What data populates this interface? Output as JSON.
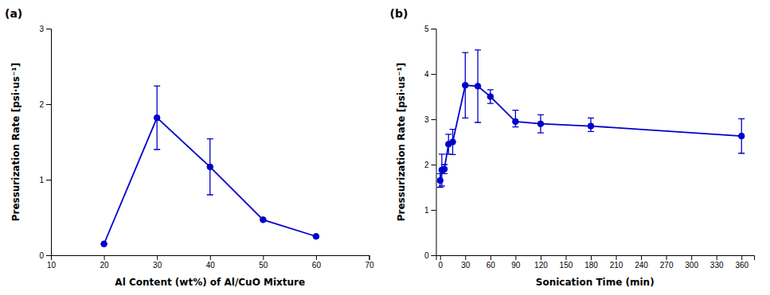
{
  "chart_data": [
    {
      "type": "line",
      "title": "(a)",
      "x": [
        20,
        30,
        40,
        50,
        60
      ],
      "values": [
        0.15,
        1.82,
        1.17,
        0.47,
        0.25
      ],
      "yerr": [
        0.0,
        0.42,
        0.37,
        0.0,
        0.0
      ],
      "xlim": [
        10,
        70
      ],
      "xticks": [
        10,
        20,
        30,
        40,
        50,
        60,
        70
      ],
      "ylim": [
        0,
        3
      ],
      "yticks": [
        0,
        1,
        2,
        3
      ],
      "xlabel": "Al Content (wt%) of Al/CuO Mixture",
      "ylabel": "Pressurization Rate [psi·us⁻¹]",
      "color": "#0000CC",
      "marker": "circle"
    },
    {
      "type": "line",
      "title": "(b)",
      "x": [
        0,
        2,
        5,
        10,
        15,
        30,
        45,
        60,
        90,
        120,
        180,
        360
      ],
      "values": [
        1.65,
        1.88,
        1.9,
        2.45,
        2.5,
        3.75,
        3.73,
        3.5,
        2.95,
        2.9,
        2.85,
        2.63
      ],
      "yerr_low": [
        0.15,
        0.35,
        0.1,
        0.22,
        0.28,
        0.72,
        0.8,
        0.15,
        0.12,
        0.2,
        0.12,
        0.38
      ],
      "yerr_high": [
        0.15,
        0.35,
        0.1,
        0.22,
        0.28,
        0.72,
        0.8,
        0.15,
        0.25,
        0.2,
        0.18,
        0.38
      ],
      "xlim": [
        -5,
        375
      ],
      "xticks": [
        0,
        30,
        60,
        90,
        120,
        150,
        180,
        210,
        240,
        270,
        300,
        330,
        360
      ],
      "ylim": [
        0,
        5
      ],
      "yticks": [
        0,
        1,
        2,
        3,
        4,
        5
      ],
      "xlabel": "Sonication Time (min)",
      "ylabel": "Pressurization Rate [psi·us⁻¹]",
      "color": "#0000CC",
      "marker": "circle"
    }
  ]
}
